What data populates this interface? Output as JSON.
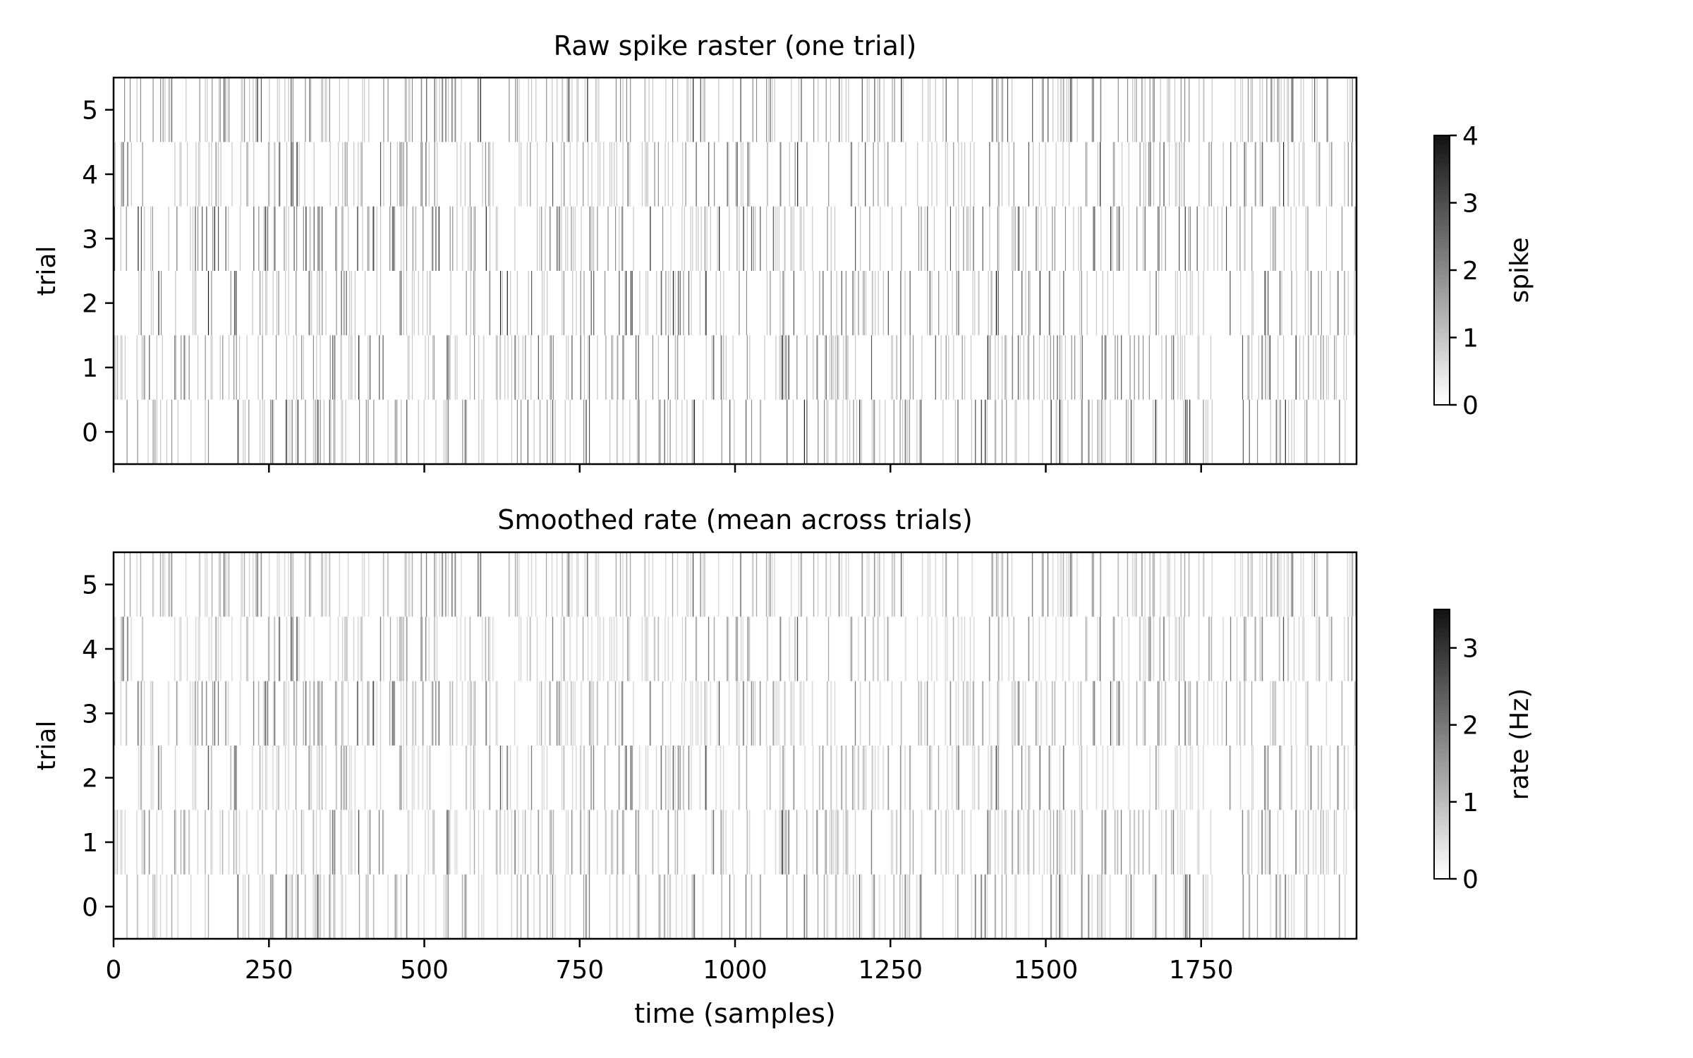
{
  "figure": {
    "xlabel": "time (samples)"
  },
  "chart_data": [
    {
      "type": "heatmap",
      "title": "Raw spike raster (one trial)",
      "ylabel": "trial",
      "xlabel": "",
      "xlim": [
        0,
        2000
      ],
      "ylim": [
        -0.5,
        5.5
      ],
      "x_ticks": [
        0,
        250,
        500,
        750,
        1000,
        1250,
        1500,
        1750
      ],
      "x_tick_labels_visible": false,
      "y_ticks": [
        "0",
        "1",
        "2",
        "3",
        "4",
        "5"
      ],
      "rows": [
        0,
        1,
        2,
        3,
        4,
        5
      ],
      "n_samples": 2000,
      "cmap": "grayscale (white = 0, black = max)",
      "colorbar": {
        "label": "spike",
        "vmin": 0,
        "vmax": 4,
        "ticks": [
          "0",
          "1",
          "2",
          "3",
          "4"
        ]
      },
      "values": "integer spike counts 0–4 per sample, sparse random"
    },
    {
      "type": "heatmap",
      "title": "Smoothed rate (mean across trials)",
      "ylabel": "trial",
      "xlabel": "time (samples)",
      "xlim": [
        0,
        2000
      ],
      "ylim": [
        -0.5,
        5.5
      ],
      "x_ticks": [
        0,
        250,
        500,
        750,
        1000,
        1250,
        1500,
        1750
      ],
      "x_tick_labels": [
        "0",
        "250",
        "500",
        "750",
        "1000",
        "1250",
        "1500",
        "1750"
      ],
      "y_ticks": [
        "0",
        "1",
        "2",
        "3",
        "4",
        "5"
      ],
      "rows": [
        0,
        1,
        2,
        3,
        4,
        5
      ],
      "n_samples": 2000,
      "cmap": "grayscale (white = 0, black = max)",
      "colorbar": {
        "label": "rate (Hz)",
        "vmin": 0,
        "vmax": 3.5,
        "ticks": [
          "0",
          "1",
          "2",
          "3"
        ]
      },
      "values": "smoothed rate 0–3.5 Hz per sample, same spike pattern as raw raster"
    }
  ]
}
